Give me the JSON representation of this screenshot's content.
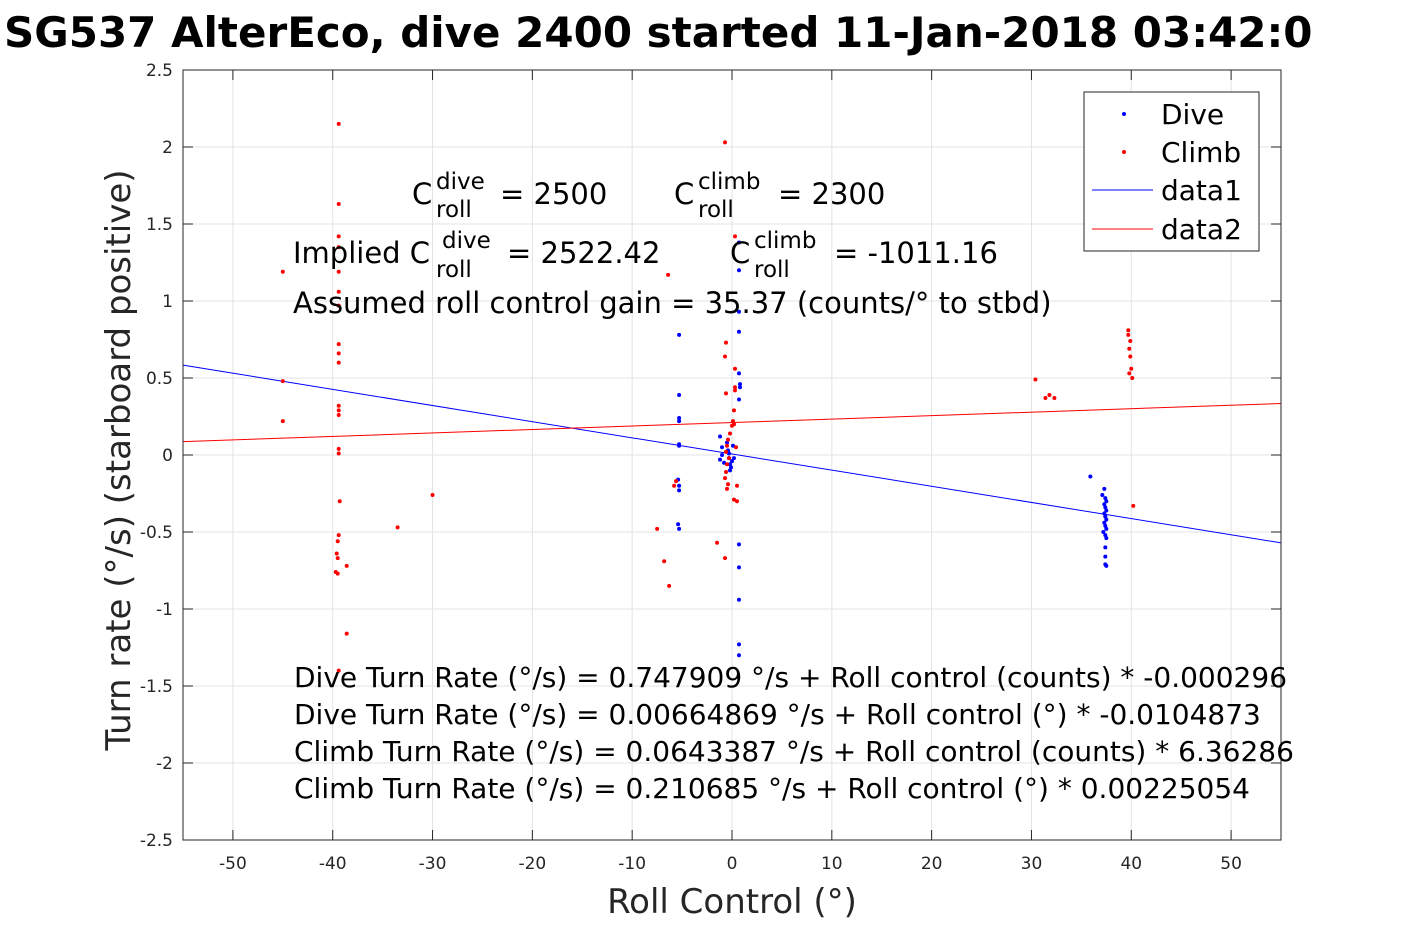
{
  "chart_data": {
    "type": "scatter",
    "title": "SG537 AlterEco, dive 2400 started 11-Jan-2018 03:42:0",
    "xlabel": "Roll Control (°)",
    "ylabel": "Turn rate (°/s) (starboard positive)",
    "xlim": [
      -55,
      55
    ],
    "ylim": [
      -2.5,
      2.5
    ],
    "xticks": [
      -50,
      -40,
      -30,
      -20,
      -10,
      0,
      10,
      20,
      30,
      40,
      50
    ],
    "xtick_labels": [
      "-50",
      "-40",
      "-30",
      "-20",
      "-10",
      "0",
      "10",
      "20",
      "30",
      "40",
      "50"
    ],
    "yticks": [
      -2.5,
      -2,
      -1.5,
      -1,
      -0.5,
      0,
      0.5,
      1,
      1.5,
      2,
      2.5
    ],
    "ytick_labels": [
      "-2.5",
      "-2",
      "-1.5",
      "-1",
      "-0.5",
      "0",
      "0.5",
      "1",
      "1.5",
      "2",
      "2.5"
    ],
    "grid": true,
    "legend_position": "top-right",
    "legend": [
      "Dive",
      "Climb",
      "data1",
      "data2"
    ],
    "series": [
      {
        "name": "Dive",
        "kind": "points",
        "color": "#0000ff",
        "points": [
          [
            -5.3,
            0.78
          ],
          [
            -5.3,
            0.39
          ],
          [
            -5.3,
            0.24
          ],
          [
            -5.3,
            0.22
          ],
          [
            -5.3,
            0.07
          ],
          [
            -5.3,
            0.06
          ],
          [
            -5.4,
            -0.16
          ],
          [
            -5.3,
            -0.2
          ],
          [
            -5.3,
            -0.23
          ],
          [
            -5.4,
            -0.45
          ],
          [
            -5.3,
            -0.48
          ],
          [
            -1.2,
            0.12
          ],
          [
            -1.0,
            0.05
          ],
          [
            -1.0,
            0.0
          ],
          [
            -1.2,
            -0.03
          ],
          [
            -0.8,
            -0.05
          ],
          [
            -0.5,
            0.08
          ],
          [
            -0.4,
            0.03
          ],
          [
            -0.3,
            -0.02
          ],
          [
            -0.2,
            -0.06
          ],
          [
            -0.1,
            -0.08
          ],
          [
            0.0,
            -0.04
          ],
          [
            0.1,
            0.06
          ],
          [
            -0.3,
            0.01
          ],
          [
            0.2,
            -0.02
          ],
          [
            -0.2,
            -0.1
          ],
          [
            0.7,
            1.38
          ],
          [
            0.7,
            1.2
          ],
          [
            0.7,
            0.93
          ],
          [
            0.7,
            0.8
          ],
          [
            0.7,
            0.53
          ],
          [
            0.8,
            0.46
          ],
          [
            0.8,
            0.44
          ],
          [
            0.7,
            0.36
          ],
          [
            0.7,
            -0.58
          ],
          [
            0.7,
            -0.73
          ],
          [
            0.7,
            -0.94
          ],
          [
            0.7,
            -1.23
          ],
          [
            0.7,
            -1.3
          ],
          [
            35.9,
            -0.14
          ],
          [
            37.3,
            -0.22
          ],
          [
            37.1,
            -0.26
          ],
          [
            37.4,
            -0.28
          ],
          [
            37.5,
            -0.3
          ],
          [
            37.3,
            -0.32
          ],
          [
            37.4,
            -0.34
          ],
          [
            37.5,
            -0.36
          ],
          [
            37.3,
            -0.38
          ],
          [
            37.4,
            -0.4
          ],
          [
            37.5,
            -0.42
          ],
          [
            37.3,
            -0.44
          ],
          [
            37.4,
            -0.46
          ],
          [
            37.5,
            -0.48
          ],
          [
            37.2,
            -0.5
          ],
          [
            37.4,
            -0.52
          ],
          [
            37.5,
            -0.54
          ],
          [
            37.4,
            -0.6
          ],
          [
            37.4,
            -0.66
          ],
          [
            37.4,
            -0.71
          ],
          [
            37.5,
            -0.72
          ]
        ]
      },
      {
        "name": "Climb",
        "kind": "points",
        "color": "#ff0000",
        "points": [
          [
            -45.0,
            1.19
          ],
          [
            -45.0,
            0.48
          ],
          [
            -45.0,
            0.22
          ],
          [
            -39.4,
            2.15
          ],
          [
            -39.4,
            1.63
          ],
          [
            -39.4,
            1.42
          ],
          [
            -39.4,
            1.35
          ],
          [
            -39.4,
            1.19
          ],
          [
            -39.4,
            1.06
          ],
          [
            -39.4,
            0.97
          ],
          [
            -39.4,
            0.72
          ],
          [
            -39.4,
            0.66
          ],
          [
            -39.4,
            0.6
          ],
          [
            -39.4,
            0.32
          ],
          [
            -39.4,
            0.29
          ],
          [
            -39.4,
            0.26
          ],
          [
            -39.4,
            0.04
          ],
          [
            -39.4,
            0.01
          ],
          [
            -39.3,
            -0.3
          ],
          [
            -39.4,
            -0.52
          ],
          [
            -39.5,
            -0.56
          ],
          [
            -39.6,
            -0.64
          ],
          [
            -39.5,
            -0.67
          ],
          [
            -39.7,
            -0.76
          ],
          [
            -39.5,
            -0.77
          ],
          [
            -38.6,
            -0.72
          ],
          [
            -38.6,
            -1.16
          ],
          [
            -39.4,
            -1.4
          ],
          [
            -33.5,
            -0.47
          ],
          [
            -30.0,
            -0.26
          ],
          [
            -7.5,
            -0.48
          ],
          [
            -6.8,
            -0.69
          ],
          [
            -6.3,
            -0.85
          ],
          [
            -6.4,
            1.17
          ],
          [
            -5.6,
            -0.17
          ],
          [
            -5.8,
            -0.2
          ],
          [
            -1.5,
            -0.57
          ],
          [
            -0.7,
            2.03
          ],
          [
            -0.6,
            0.73
          ],
          [
            -0.7,
            0.64
          ],
          [
            -0.6,
            0.4
          ],
          [
            -0.7,
            -0.67
          ],
          [
            0.3,
            1.42
          ],
          [
            0.3,
            0.56
          ],
          [
            0.3,
            0.44
          ],
          [
            0.3,
            0.42
          ],
          [
            0.2,
            0.29
          ],
          [
            0.1,
            0.22
          ],
          [
            0.2,
            0.2
          ],
          [
            0.0,
            0.19
          ],
          [
            -0.2,
            0.14
          ],
          [
            -0.4,
            0.1
          ],
          [
            -0.5,
            0.06
          ],
          [
            -0.6,
            0.02
          ],
          [
            -0.3,
            -0.02
          ],
          [
            -0.5,
            -0.06
          ],
          [
            -0.6,
            -0.11
          ],
          [
            -0.7,
            -0.15
          ],
          [
            -0.4,
            -0.19
          ],
          [
            0.5,
            -0.2
          ],
          [
            0.2,
            -0.29
          ],
          [
            0.5,
            -0.3
          ],
          [
            -0.5,
            -0.22
          ],
          [
            0.4,
            0.05
          ],
          [
            30.4,
            0.49
          ],
          [
            31.4,
            0.37
          ],
          [
            31.8,
            0.39
          ],
          [
            32.3,
            0.37
          ],
          [
            39.7,
            0.81
          ],
          [
            39.7,
            0.78
          ],
          [
            39.9,
            0.74
          ],
          [
            39.8,
            0.69
          ],
          [
            39.9,
            0.64
          ],
          [
            40.0,
            0.56
          ],
          [
            39.8,
            0.53
          ],
          [
            40.1,
            0.5
          ],
          [
            40.2,
            -0.33
          ]
        ]
      },
      {
        "name": "data1",
        "kind": "line",
        "color": "#0000ff",
        "x": [
          -55,
          55
        ],
        "y": [
          0.5835,
          -0.5703
        ]
      },
      {
        "name": "data2",
        "kind": "line",
        "color": "#ff0000",
        "x": [
          -55,
          55
        ],
        "y": [
          0.0869,
          0.3345
        ]
      }
    ],
    "annotations": {
      "c_roll_dive": "= 2500",
      "c_roll_climb": "= 2300",
      "implied_prefix": "Implied C",
      "implied_dive": "= 2522.42",
      "implied_climb": "= -1011.16",
      "c_symbol": "C",
      "sup_dive": "dive",
      "sup_climb": "climb",
      "sub_roll": "roll",
      "gain": "Assumed roll control gain = 35.37 (counts/° to stbd)",
      "fits": [
        "Dive Turn Rate (°/s) = 0.747909 °/s + Roll control (counts) * -0.000296",
        "Dive Turn Rate (°/s) = 0.00664869 °/s + Roll control (°) * -0.0104873",
        "Climb Turn Rate (°/s) = 0.0643387 °/s + Roll control (counts) * 6.36286",
        "Climb Turn Rate (°/s) = 0.210685 °/s + Roll control (°) * 0.00225054"
      ]
    }
  }
}
